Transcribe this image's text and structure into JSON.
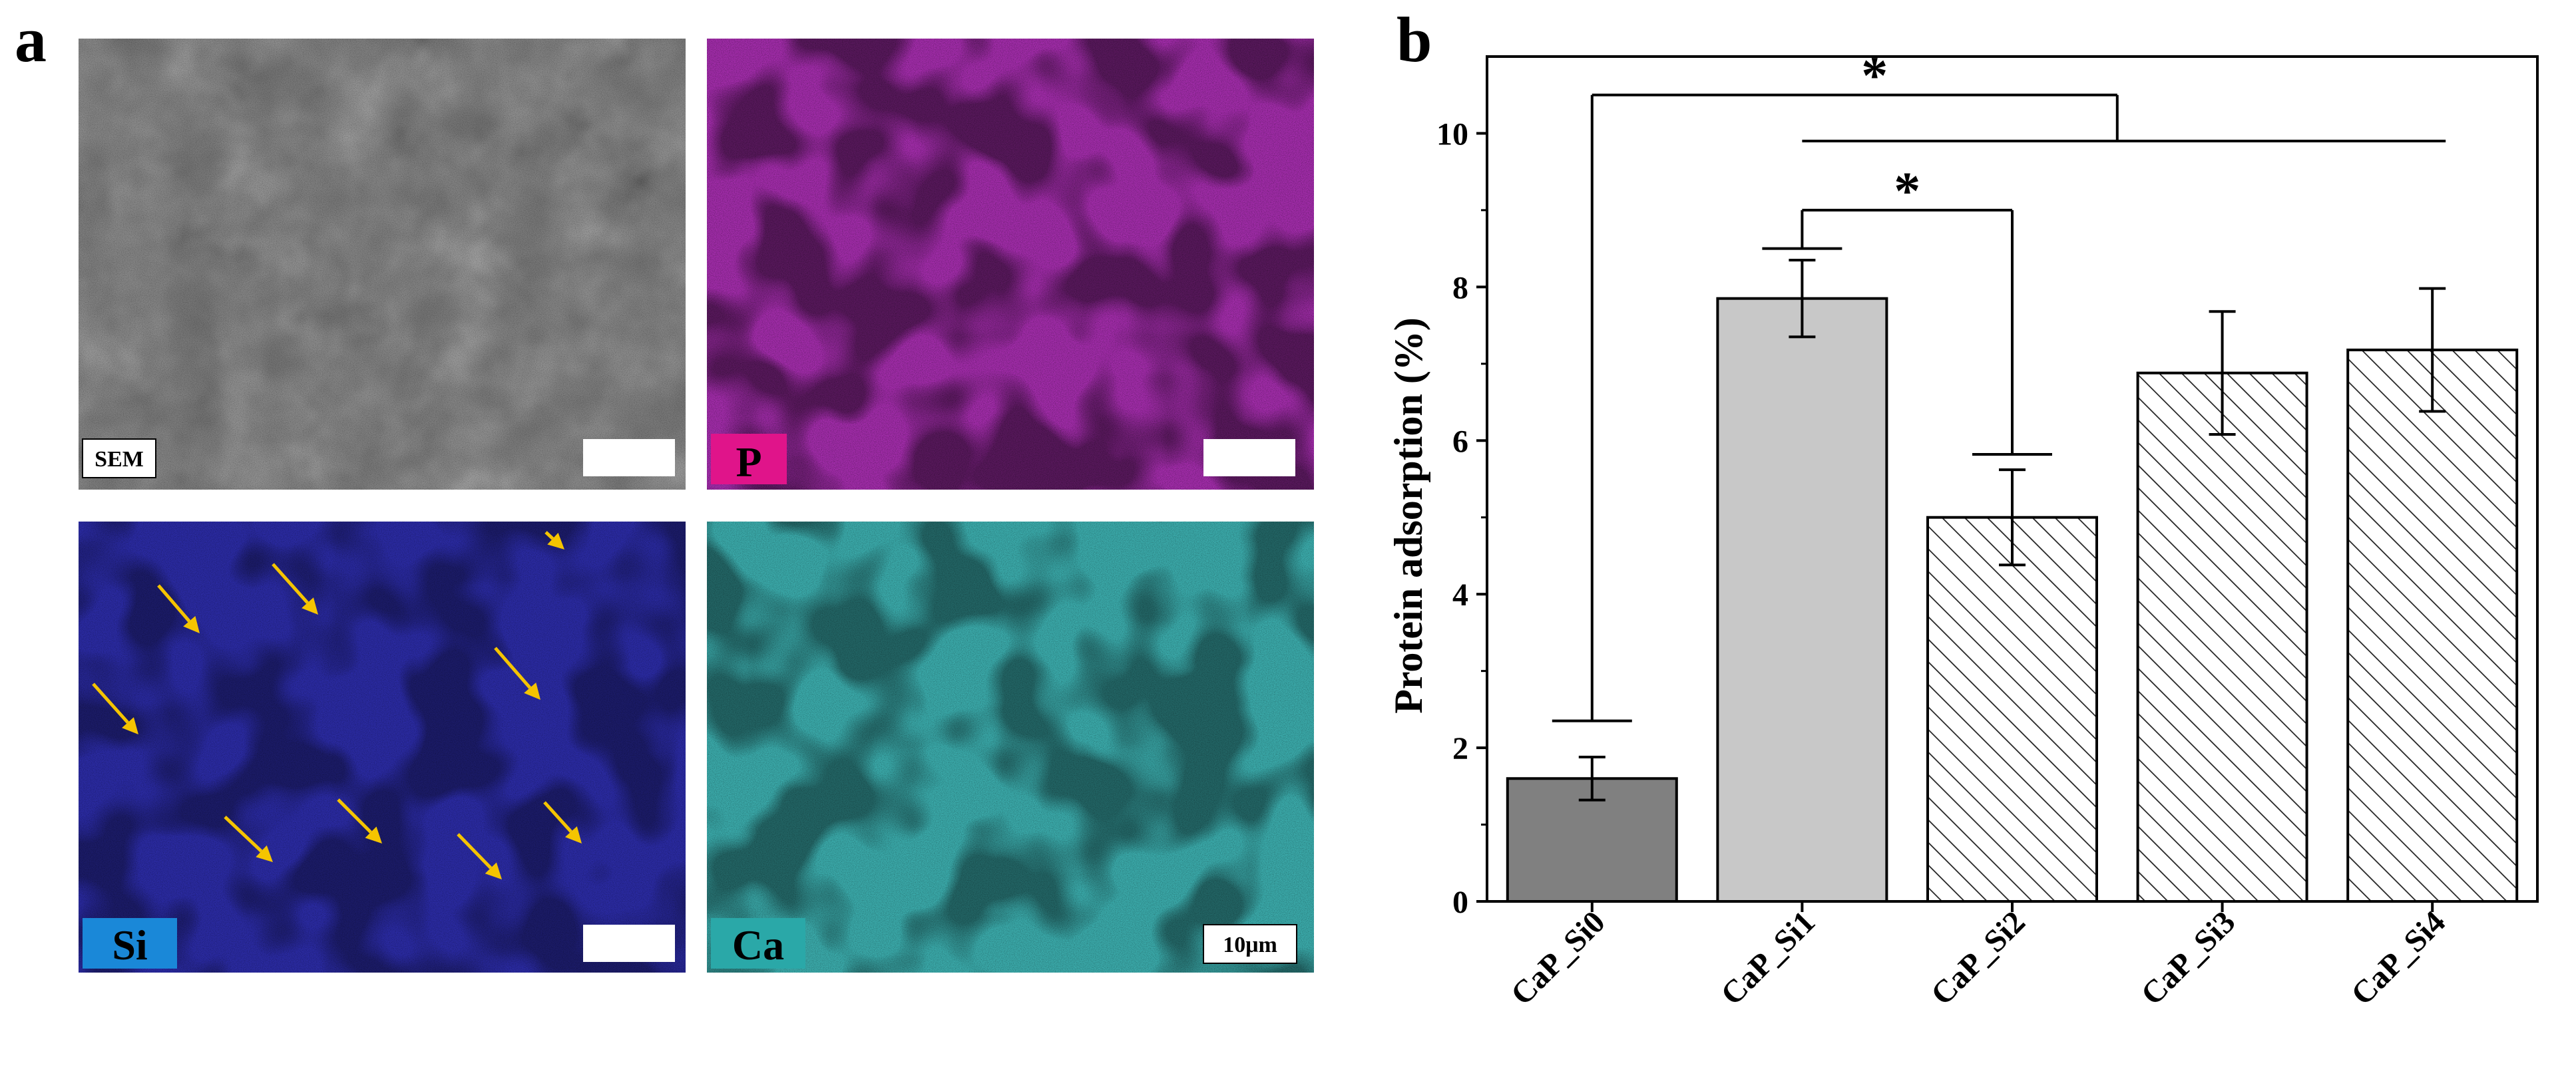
{
  "panel_a": {
    "letter": "a",
    "tiles": [
      {
        "label": "SEM",
        "color": "#707070",
        "scale_text": ""
      },
      {
        "label": "P",
        "color": "#a02ca8",
        "label_color": "#e0148a",
        "scale_text": ""
      },
      {
        "label": "Si",
        "color": "#2a2aa0",
        "label_color": "#1a88d8",
        "scale_text": ""
      },
      {
        "label": "Ca",
        "color": "#3aa8a8",
        "label_color": "#2aa8a8",
        "scale_text": "10μm"
      }
    ],
    "arrow_color": "#f5c400"
  },
  "panel_b": {
    "letter": "b",
    "significance_mark": "*"
  },
  "chart_data": {
    "type": "bar",
    "categories": [
      "CaP_Si0",
      "CaP_Si1",
      "CaP_Si2",
      "CaP_Si3",
      "CaP_Si4"
    ],
    "values": [
      1.6,
      7.85,
      5.0,
      6.88,
      7.18
    ],
    "errors": [
      0.28,
      0.5,
      0.62,
      0.8,
      0.8
    ],
    "fills": [
      "solid-dark",
      "solid-light",
      "hatched",
      "hatched",
      "hatched"
    ],
    "colors": {
      "dark": "#808080",
      "light": "#c8c8c8"
    },
    "ylabel": "Protein adsorption (%)",
    "xlabel": "",
    "title": "",
    "ylim": [
      0,
      11
    ],
    "yticks": [
      "0",
      "2",
      "4",
      "6",
      "8",
      "10"
    ],
    "grid": false,
    "legend": "none"
  }
}
